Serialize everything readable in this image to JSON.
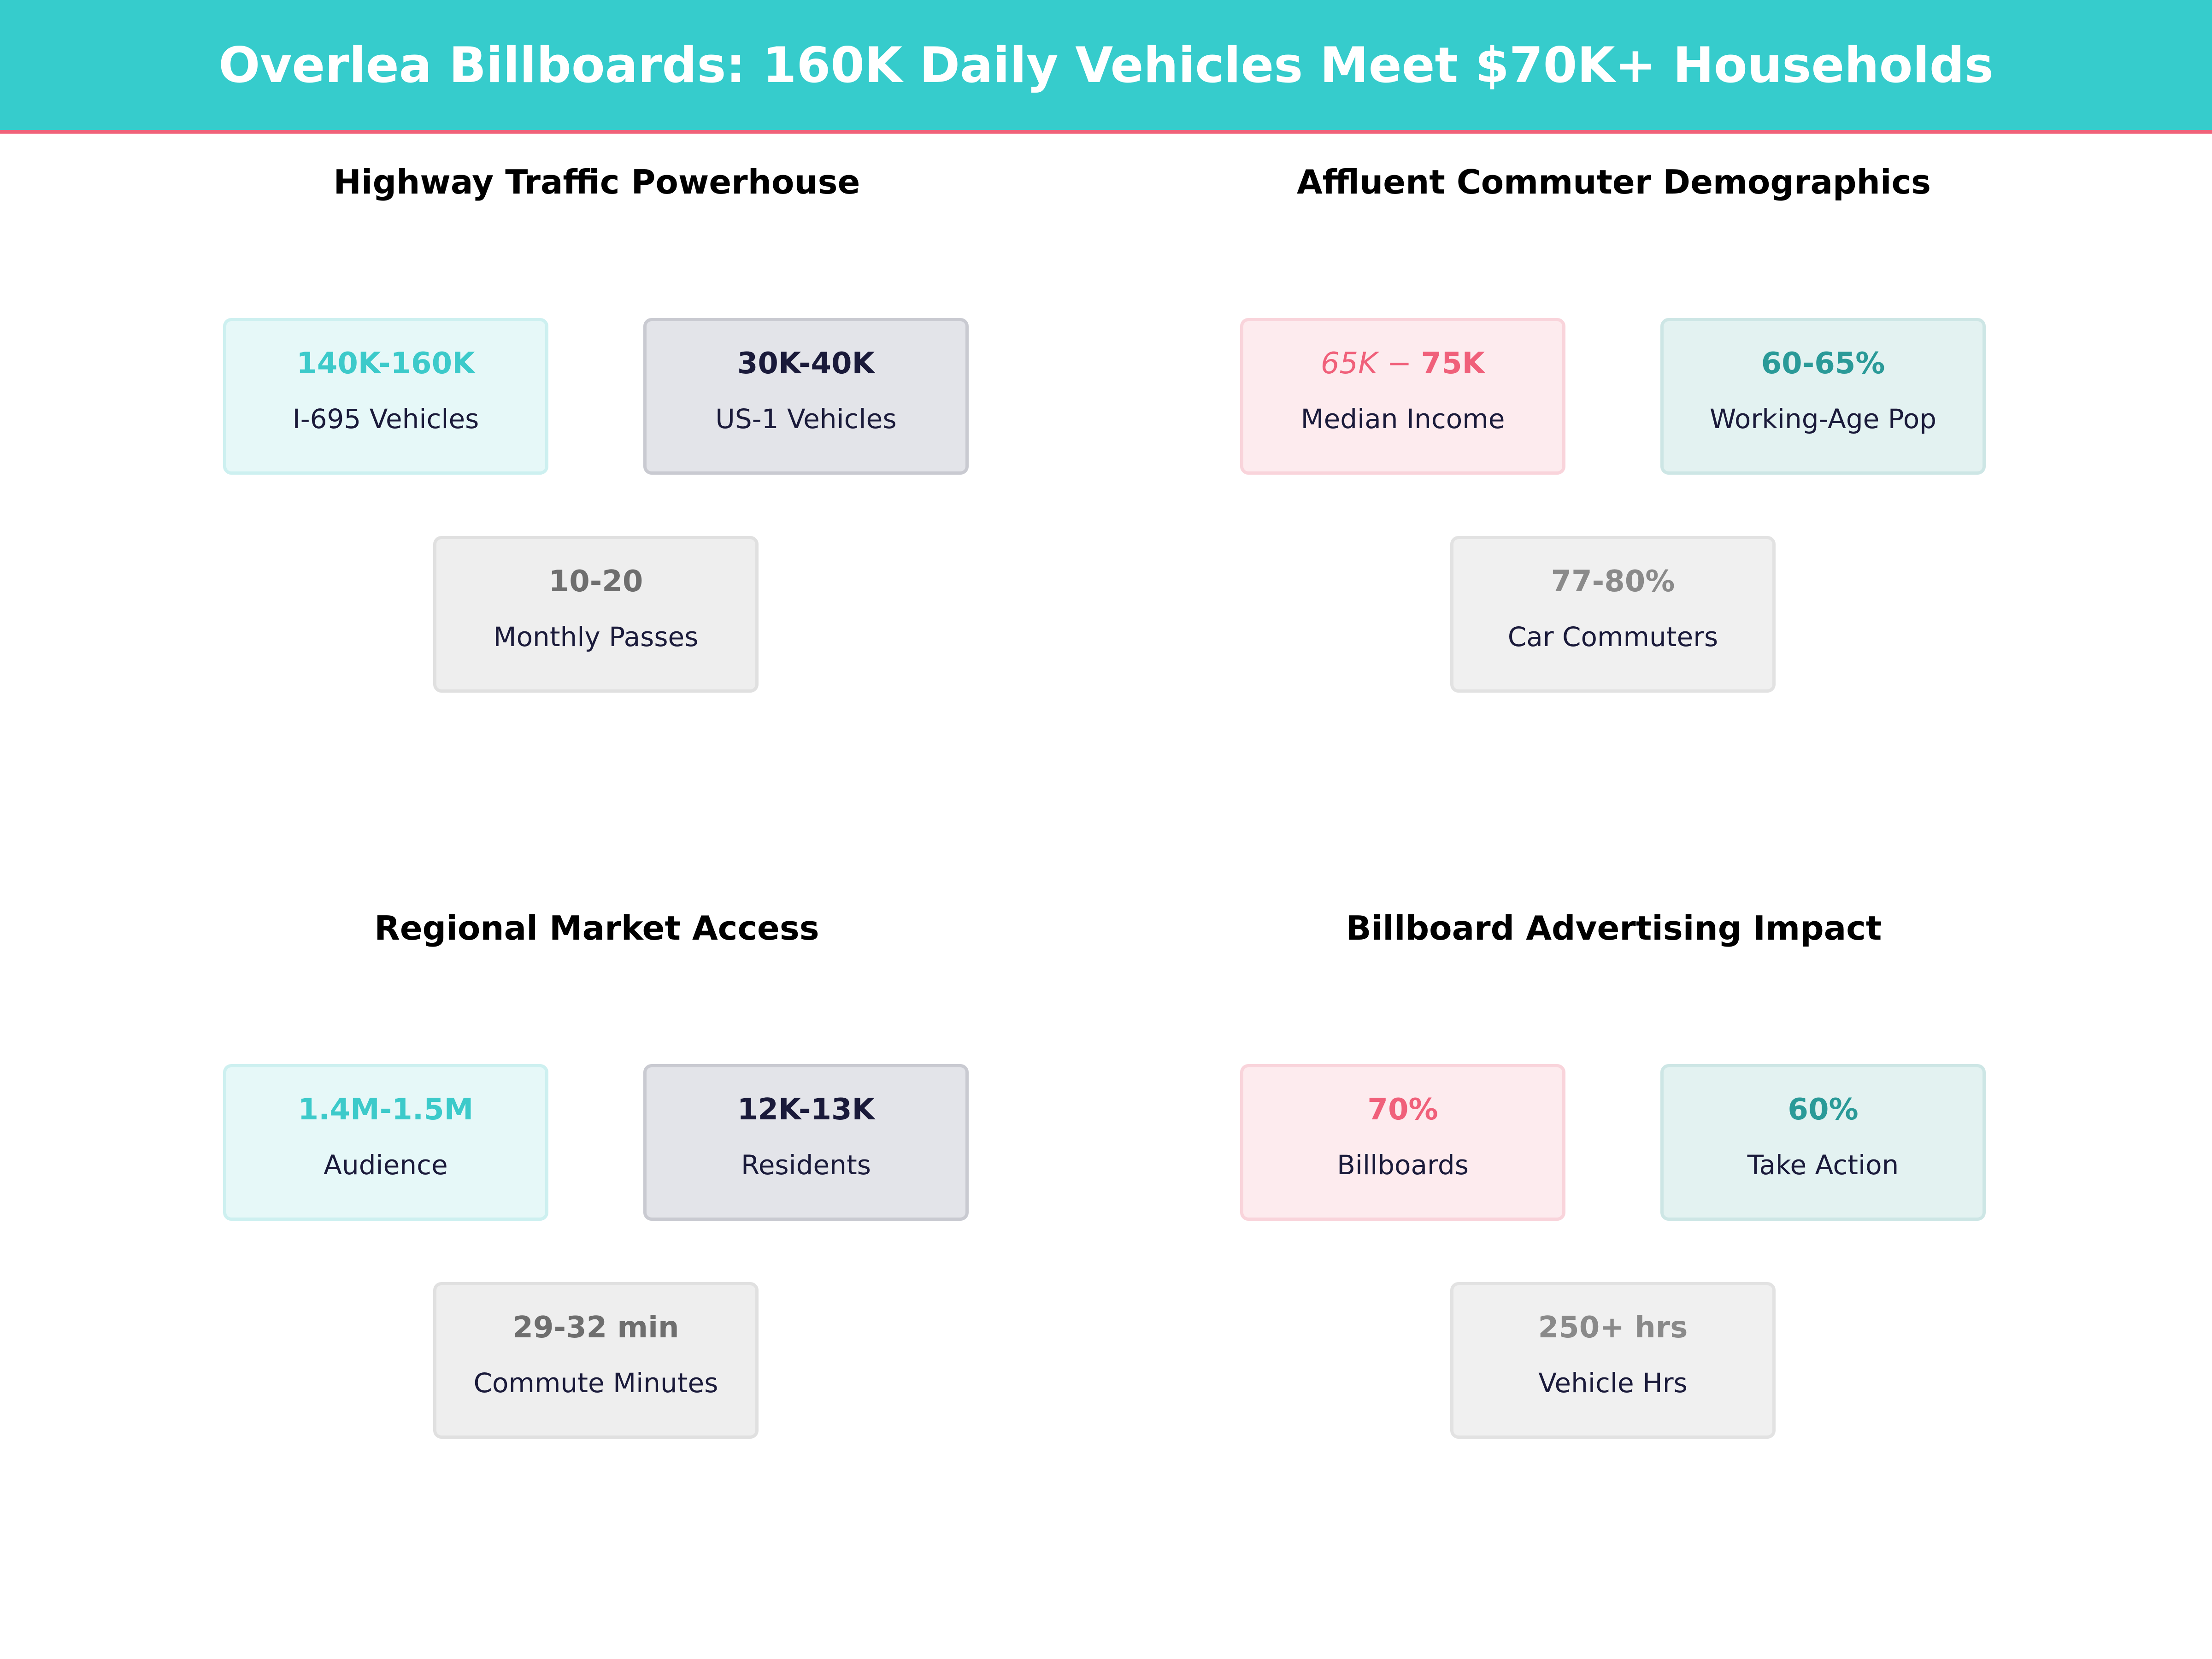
{
  "title": "Overlea Billboards: 160K Daily Vehicles Meet $70K+ Households",
  "colors": {
    "header": "#36cccc",
    "accent_line": "#f0627a",
    "teal": "#3ccaca",
    "navy": "#1a1a3a",
    "pink": "#f0607a",
    "dark_teal": "#2a9a98",
    "grey": "#6e6e6e"
  },
  "sections": [
    {
      "title": "Highway Traffic Powerhouse",
      "cards": [
        {
          "value": "140K-160K",
          "label": "I-695  Vehicles",
          "style": "teal"
        },
        {
          "value": "30K-40K",
          "label": "US-1  Vehicles",
          "style": "navy"
        },
        {
          "value": "10-20",
          "label": "Monthly Passes",
          "style": "grey"
        }
      ]
    },
    {
      "title": "Affluent Commuter Demographics",
      "cards": [
        {
          "value_a": "65K − ",
          "value_b": "75K",
          "label": "Median Income",
          "style": "pink"
        },
        {
          "value": "60-65%",
          "label": "Working-Age Pop",
          "style": "dteal"
        },
        {
          "value": "77-80%",
          "label": "Car Commuters",
          "style": "grey2"
        }
      ]
    },
    {
      "title": "Regional Market Access",
      "cards": [
        {
          "value": "1.4M-1.5M",
          "label": "Audience",
          "style": "teal"
        },
        {
          "value": "12K-13K",
          "label": "Residents",
          "style": "navy"
        },
        {
          "value": "29-32 min",
          "label": "Commute Minutes",
          "style": "grey"
        }
      ]
    },
    {
      "title": "Billboard Advertising Impact",
      "cards": [
        {
          "value": "70%",
          "label": "Billboards",
          "style": "pink"
        },
        {
          "value": "60%",
          "label": "Take Action",
          "style": "dteal"
        },
        {
          "value": "250+ hrs",
          "label": "Vehicle Hrs",
          "style": "grey2"
        }
      ]
    }
  ]
}
